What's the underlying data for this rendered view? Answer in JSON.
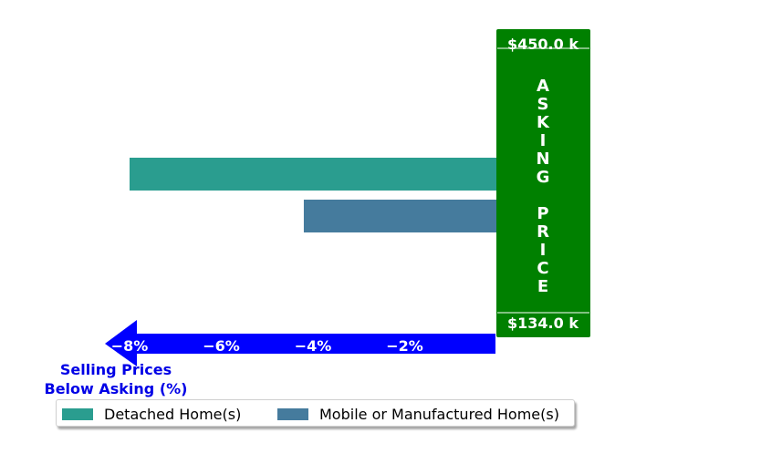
{
  "chart_data": {
    "type": "bar",
    "orientation": "horizontal",
    "series": [
      {
        "name": "Detached Home(s)",
        "value": -8.0,
        "color": "#2a9d8f"
      },
      {
        "name": "Mobile or Manufactured Home(s)",
        "value": -4.2,
        "color": "#457b9d"
      }
    ],
    "xlim": [
      -10,
      0
    ],
    "x_ticks": [
      -8,
      -6,
      -4,
      -2
    ],
    "x_tick_labels": [
      "−8%",
      "−6%",
      "−4%",
      "−2%"
    ],
    "xlabel_line1": "Selling Prices",
    "xlabel_line2": "Below Asking (%)",
    "asking_price_label": [
      "A",
      "S",
      "K",
      "I",
      "N",
      "G",
      " ",
      "P",
      "R",
      "I",
      "C",
      "E"
    ],
    "price_top": "$450.0 k",
    "price_bottom": "$134.0 k",
    "accent_color": "#008000",
    "axis_arrow_color": "#0000ff",
    "legend_placement": "bottom-center",
    "grid": false
  }
}
